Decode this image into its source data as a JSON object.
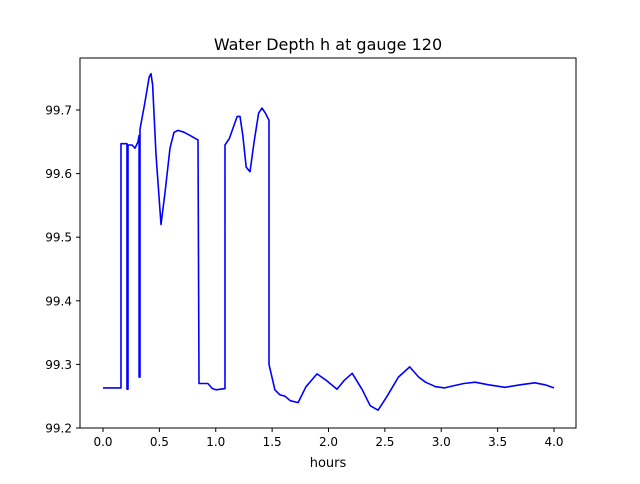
{
  "chart_data": {
    "type": "line",
    "title": "Water Depth h at gauge 120",
    "xlabel": "hours",
    "ylabel": "",
    "xlim": [
      -0.2,
      4.2
    ],
    "ylim": [
      99.2,
      99.78
    ],
    "xticks": [
      0.0,
      0.5,
      1.0,
      1.5,
      2.0,
      2.5,
      3.0,
      3.5,
      4.0
    ],
    "xtick_labels": [
      "0.0",
      "0.5",
      "1.0",
      "1.5",
      "2.0",
      "2.5",
      "3.0",
      "3.5",
      "4.0"
    ],
    "yticks": [
      99.2,
      99.3,
      99.4,
      99.5,
      99.6,
      99.7
    ],
    "ytick_labels": [
      "99.2",
      "99.3",
      "99.4",
      "99.5",
      "99.6",
      "99.7"
    ],
    "grid": false,
    "series": [
      {
        "name": "h",
        "color": "#0000ff",
        "x": [
          0.0,
          0.16,
          0.16,
          0.213,
          0.213,
          0.222,
          0.222,
          0.258,
          0.284,
          0.31,
          0.32,
          0.32,
          0.328,
          0.328,
          0.37,
          0.41,
          0.426,
          0.44,
          0.47,
          0.514,
          0.55,
          0.594,
          0.63,
          0.665,
          0.72,
          0.772,
          0.82,
          0.843,
          0.851,
          0.93,
          0.97,
          1.002,
          1.082,
          1.082,
          1.12,
          1.16,
          1.19,
          1.215,
          1.24,
          1.27,
          1.304,
          1.34,
          1.38,
          1.41,
          1.44,
          1.472,
          1.472,
          1.525,
          1.57,
          1.614,
          1.66,
          1.73,
          1.8,
          1.898,
          1.98,
          2.075,
          2.14,
          2.21,
          2.3,
          2.37,
          2.44,
          2.52,
          2.62,
          2.72,
          2.8,
          2.86,
          2.95,
          3.03,
          3.1,
          3.2,
          3.3,
          3.42,
          3.565,
          3.7,
          3.83,
          3.92,
          4.0
        ],
        "y": [
          99.263,
          99.263,
          99.647,
          99.647,
          99.261,
          99.261,
          99.645,
          99.645,
          99.64,
          99.65,
          99.66,
          99.28,
          99.28,
          99.67,
          99.71,
          99.752,
          99.757,
          99.74,
          99.63,
          99.52,
          99.57,
          99.64,
          99.665,
          99.668,
          99.665,
          99.66,
          99.655,
          99.653,
          99.27,
          99.27,
          99.262,
          99.26,
          99.262,
          99.645,
          99.655,
          99.675,
          99.69,
          99.69,
          99.66,
          99.61,
          99.603,
          99.65,
          99.695,
          99.703,
          99.695,
          99.684,
          99.3,
          99.26,
          99.252,
          99.25,
          99.243,
          99.24,
          99.265,
          99.285,
          99.275,
          99.261,
          99.275,
          99.286,
          99.26,
          99.235,
          99.228,
          99.25,
          99.28,
          99.296,
          99.28,
          99.272,
          99.265,
          99.263,
          99.266,
          99.27,
          99.272,
          99.268,
          99.264,
          99.268,
          99.271,
          99.268,
          99.263
        ]
      }
    ]
  }
}
